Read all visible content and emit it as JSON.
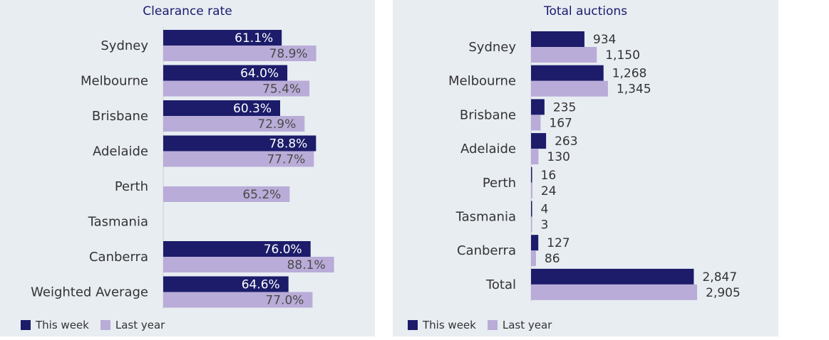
{
  "colors": {
    "this_week": "#1c1c6a",
    "last_year": "#b9acd8",
    "axis": "#cfcfcf",
    "text": "#333333",
    "title": "#1b1b6b"
  },
  "legend": {
    "this_week": "This week",
    "last_year": "Last year"
  },
  "chart_data": [
    {
      "type": "bar",
      "orientation": "horizontal",
      "title": "Clearance rate",
      "categories": [
        "Sydney",
        "Melbourne",
        "Brisbane",
        "Adelaide",
        "Perth",
        "Tasmania",
        "Canberra",
        "Weighted Average"
      ],
      "series": [
        {
          "name": "This week",
          "values": [
            61.1,
            64.0,
            60.3,
            78.8,
            null,
            null,
            76.0,
            64.6
          ],
          "labels": [
            "61.1%",
            "64.0%",
            "60.3%",
            "78.8%",
            "",
            "",
            "76.0%",
            "64.6%"
          ]
        },
        {
          "name": "Last year",
          "values": [
            78.9,
            75.4,
            72.9,
            77.7,
            65.2,
            null,
            88.1,
            77.0
          ],
          "labels": [
            "78.9%",
            "75.4%",
            "72.9%",
            "77.7%",
            "65.2%",
            "",
            "88.1%",
            "77.0%"
          ]
        }
      ],
      "xlim": [
        0,
        100
      ],
      "grid": false,
      "legend_position": "bottom-left"
    },
    {
      "type": "bar",
      "orientation": "horizontal",
      "title": "Total auctions",
      "categories": [
        "Sydney",
        "Melbourne",
        "Brisbane",
        "Adelaide",
        "Perth",
        "Tasmania",
        "Canberra",
        "Total"
      ],
      "series": [
        {
          "name": "This week",
          "values": [
            934,
            1268,
            235,
            263,
            16,
            4,
            127,
            2847
          ],
          "labels": [
            "934",
            "1,268",
            "235",
            "263",
            "16",
            "4",
            "127",
            "2,847"
          ]
        },
        {
          "name": "Last year",
          "values": [
            1150,
            1345,
            167,
            130,
            24,
            3,
            86,
            2905
          ],
          "labels": [
            "1,150",
            "1,345",
            "167",
            "130",
            "24",
            "3",
            "86",
            "2,905"
          ]
        }
      ],
      "xlim": [
        0,
        2905
      ],
      "grid": false,
      "legend_position": "bottom-left"
    }
  ]
}
